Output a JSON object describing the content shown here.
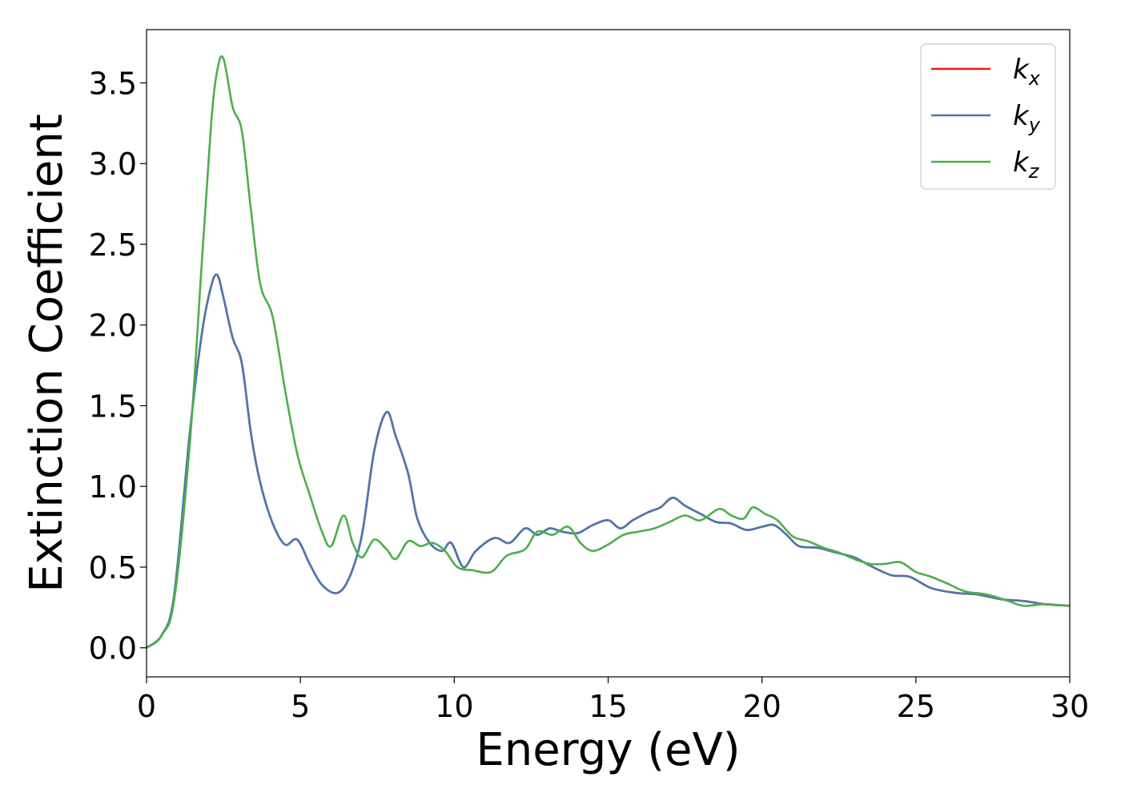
{
  "chart_data": {
    "type": "line",
    "title": "",
    "xlabel": "Energy (eV)",
    "ylabel": "Extinction Coefficient",
    "xlim": [
      0,
      30
    ],
    "ylim": [
      -0.18,
      3.83
    ],
    "xticks": [
      0,
      5,
      10,
      15,
      20,
      25,
      30
    ],
    "xtick_labels": [
      "0",
      "5",
      "10",
      "15",
      "20",
      "25",
      "30"
    ],
    "yticks": [
      0.0,
      0.5,
      1.0,
      1.5,
      2.0,
      2.5,
      3.0,
      3.5
    ],
    "ytick_labels": [
      "0.0",
      "0.5",
      "1.0",
      "1.5",
      "2.0",
      "2.5",
      "3.0",
      "3.5"
    ],
    "grid": false,
    "legend_position": "top-right",
    "series": [
      {
        "name": "k",
        "subscript": "x",
        "color": "#e41a1c",
        "x": [
          0,
          0.5,
          0.9,
          1.4,
          1.8,
          2.1,
          2.3,
          2.5,
          2.8,
          3.1,
          3.4,
          3.7,
          4.1,
          4.5,
          4.9,
          5.3,
          5.7,
          6.2,
          6.6,
          7.0,
          7.4,
          7.8,
          8.1,
          8.5,
          8.8,
          9.2,
          9.6,
          9.9,
          10.3,
          10.7,
          11.3,
          11.8,
          12.3,
          12.7,
          13.1,
          13.5,
          14.0,
          14.5,
          15.0,
          15.4,
          15.8,
          16.3,
          16.7,
          17.1,
          17.5,
          18.0,
          18.5,
          19.0,
          19.5,
          20.0,
          20.4,
          20.8,
          21.2,
          21.8,
          22.4,
          23.0,
          23.5,
          24.2,
          24.8,
          25.5,
          26.3,
          27.0,
          27.8,
          28.5,
          29.2,
          30
        ],
        "y": [
          0.0,
          0.08,
          0.33,
          1.32,
          1.95,
          2.24,
          2.31,
          2.17,
          1.92,
          1.76,
          1.32,
          1.02,
          0.77,
          0.64,
          0.67,
          0.52,
          0.39,
          0.34,
          0.44,
          0.7,
          1.22,
          1.46,
          1.31,
          1.08,
          0.8,
          0.65,
          0.6,
          0.65,
          0.5,
          0.6,
          0.68,
          0.65,
          0.74,
          0.7,
          0.74,
          0.72,
          0.71,
          0.76,
          0.79,
          0.74,
          0.79,
          0.84,
          0.87,
          0.93,
          0.88,
          0.83,
          0.78,
          0.77,
          0.73,
          0.75,
          0.76,
          0.7,
          0.63,
          0.62,
          0.59,
          0.56,
          0.51,
          0.45,
          0.44,
          0.37,
          0.34,
          0.33,
          0.3,
          0.29,
          0.27,
          0.26
        ]
      },
      {
        "name": "k",
        "subscript": "y",
        "color": "#4a78b0",
        "x": [
          0,
          0.5,
          0.9,
          1.4,
          1.8,
          2.1,
          2.3,
          2.5,
          2.8,
          3.1,
          3.4,
          3.7,
          4.1,
          4.5,
          4.9,
          5.3,
          5.7,
          6.2,
          6.6,
          7.0,
          7.4,
          7.8,
          8.1,
          8.5,
          8.8,
          9.2,
          9.6,
          9.9,
          10.3,
          10.7,
          11.3,
          11.8,
          12.3,
          12.7,
          13.1,
          13.5,
          14.0,
          14.5,
          15.0,
          15.4,
          15.8,
          16.3,
          16.7,
          17.1,
          17.5,
          18.0,
          18.5,
          19.0,
          19.5,
          20.0,
          20.4,
          20.8,
          21.2,
          21.8,
          22.4,
          23.0,
          23.5,
          24.2,
          24.8,
          25.5,
          26.3,
          27.0,
          27.8,
          28.5,
          29.2,
          30
        ],
        "y": [
          0.0,
          0.08,
          0.33,
          1.32,
          1.95,
          2.24,
          2.31,
          2.17,
          1.92,
          1.76,
          1.32,
          1.02,
          0.77,
          0.64,
          0.67,
          0.52,
          0.39,
          0.34,
          0.44,
          0.7,
          1.22,
          1.46,
          1.31,
          1.08,
          0.8,
          0.65,
          0.6,
          0.65,
          0.5,
          0.6,
          0.68,
          0.65,
          0.74,
          0.7,
          0.74,
          0.72,
          0.71,
          0.76,
          0.79,
          0.74,
          0.79,
          0.84,
          0.87,
          0.93,
          0.88,
          0.83,
          0.78,
          0.77,
          0.73,
          0.75,
          0.76,
          0.7,
          0.63,
          0.62,
          0.59,
          0.56,
          0.51,
          0.45,
          0.44,
          0.37,
          0.34,
          0.33,
          0.3,
          0.29,
          0.27,
          0.26
        ]
      },
      {
        "name": "k",
        "subscript": "z",
        "color": "#4daf4a",
        "x": [
          0,
          0.5,
          0.9,
          1.4,
          1.8,
          2.1,
          2.3,
          2.5,
          2.8,
          3.1,
          3.4,
          3.7,
          4.1,
          4.5,
          4.9,
          5.3,
          5.7,
          6.0,
          6.4,
          6.7,
          7.0,
          7.4,
          7.8,
          8.1,
          8.5,
          8.9,
          9.3,
          9.7,
          10.1,
          10.6,
          11.2,
          11.7,
          12.3,
          12.7,
          13.2,
          13.7,
          14.1,
          14.5,
          15.0,
          15.5,
          16.0,
          16.5,
          17.0,
          17.5,
          18.0,
          18.6,
          19.0,
          19.4,
          19.7,
          20.1,
          20.5,
          21.0,
          21.5,
          22.0,
          22.5,
          23.0,
          23.5,
          24.0,
          24.5,
          25.0,
          25.5,
          26.0,
          26.6,
          27.3,
          28.0,
          28.5,
          29.2,
          30
        ],
        "y": [
          0.0,
          0.08,
          0.3,
          1.25,
          2.4,
          3.25,
          3.58,
          3.65,
          3.35,
          3.2,
          2.7,
          2.25,
          2.05,
          1.6,
          1.2,
          0.95,
          0.72,
          0.63,
          0.82,
          0.65,
          0.56,
          0.67,
          0.61,
          0.55,
          0.66,
          0.63,
          0.65,
          0.6,
          0.5,
          0.48,
          0.47,
          0.57,
          0.61,
          0.72,
          0.7,
          0.75,
          0.65,
          0.6,
          0.64,
          0.7,
          0.72,
          0.74,
          0.78,
          0.82,
          0.79,
          0.86,
          0.82,
          0.8,
          0.87,
          0.83,
          0.79,
          0.69,
          0.66,
          0.62,
          0.59,
          0.55,
          0.52,
          0.52,
          0.53,
          0.47,
          0.44,
          0.4,
          0.35,
          0.33,
          0.29,
          0.26,
          0.27,
          0.26
        ]
      }
    ]
  }
}
